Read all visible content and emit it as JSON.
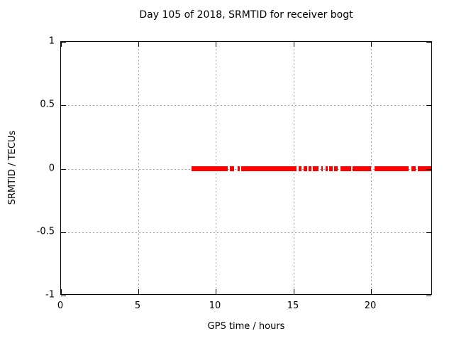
{
  "chart_data": {
    "type": "scatter",
    "title": "Day 105 of 2018, SRMTID for receiver bogt",
    "xlabel": "GPS time / hours",
    "ylabel": "SRMTID / TECUs",
    "xlim": [
      0,
      24
    ],
    "ylim": [
      -1,
      1
    ],
    "grid": true,
    "legend": "none",
    "xticks": [
      0,
      5,
      10,
      15,
      20
    ],
    "xtick_labels": [
      "0",
      "5",
      "10",
      "15",
      "20"
    ],
    "yticks": [
      -1,
      -0.5,
      0,
      0.5,
      1
    ],
    "ytick_labels": [
      "-1",
      "-0.5",
      "0",
      "0.5",
      "1"
    ],
    "border_color": "#000000",
    "grid_color": "#a0a0a0",
    "background_color": "#ffffff",
    "series": [
      {
        "name": "srmtid",
        "marker": "filled-square",
        "color": "#ff0000",
        "y_value": 0,
        "x_segments_hours": [
          [
            8.43,
            10.76
          ],
          [
            10.9,
            11.15
          ],
          [
            11.42,
            11.56
          ],
          [
            11.63,
            15.21
          ],
          [
            15.34,
            15.52
          ],
          [
            15.66,
            15.9
          ],
          [
            15.98,
            16.17
          ],
          [
            16.26,
            16.63
          ],
          [
            16.8,
            16.9
          ],
          [
            17.07,
            17.22
          ],
          [
            17.31,
            17.54
          ],
          [
            17.63,
            17.86
          ],
          [
            18.04,
            18.73
          ],
          [
            18.82,
            20.02
          ],
          [
            20.24,
            22.44
          ],
          [
            22.62,
            22.9
          ],
          [
            23.03,
            23.9
          ]
        ]
      }
    ]
  }
}
